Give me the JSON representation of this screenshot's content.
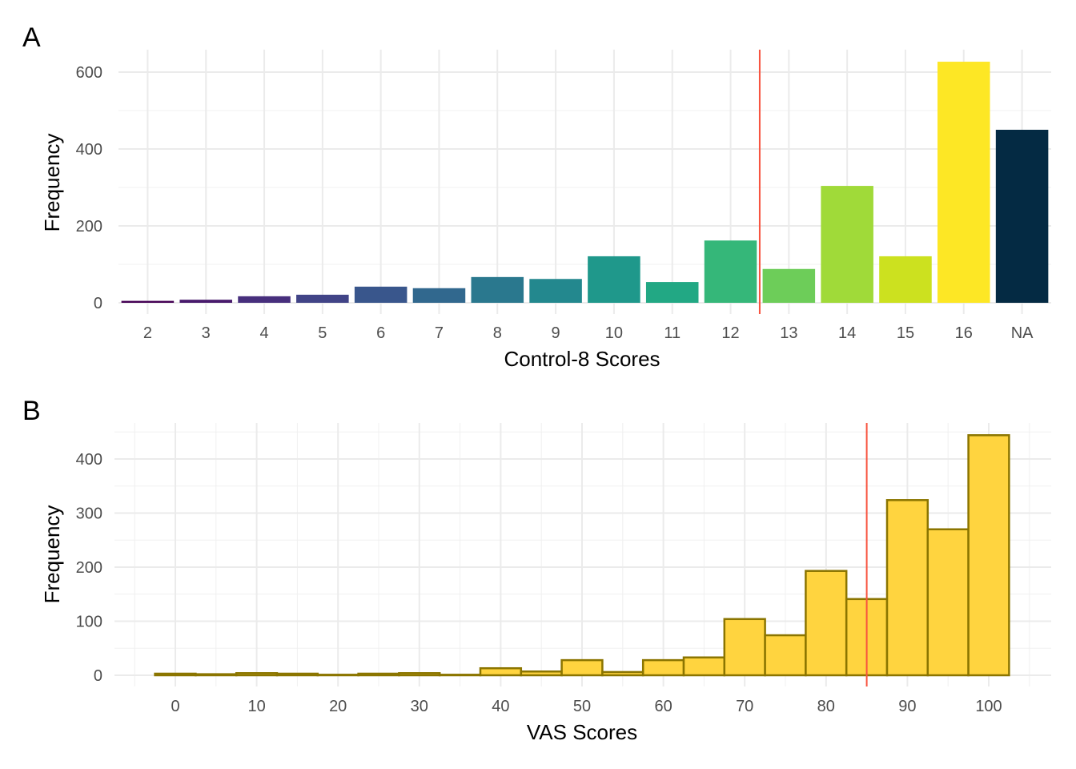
{
  "chart_data": [
    {
      "type": "bar",
      "tag": "A",
      "title": "",
      "xlabel": "Control-8 Scores",
      "ylabel": "Frequency",
      "categories": [
        "2",
        "3",
        "4",
        "5",
        "6",
        "7",
        "8",
        "9",
        "10",
        "11",
        "12",
        "13",
        "14",
        "15",
        "16",
        "NA"
      ],
      "values": [
        5,
        8,
        17,
        21,
        42,
        38,
        67,
        62,
        121,
        54,
        162,
        88,
        304,
        121,
        627,
        450
      ],
      "colors": [
        "#440154",
        "#481A6C",
        "#472F7D",
        "#414487",
        "#39568C",
        "#31688E",
        "#2A788E",
        "#23888E",
        "#1F988B",
        "#22A884",
        "#35B779",
        "#6DCD59",
        "#A0DA39",
        "#CCE11F",
        "#FDE725",
        "#042A43"
      ],
      "ylim": [
        0,
        658
      ],
      "yticks": [
        0,
        200,
        400,
        600
      ],
      "cutoff_line": {
        "x": 12.5,
        "color": "#F8533F"
      },
      "grid": true
    },
    {
      "type": "histogram",
      "tag": "B",
      "title": "",
      "xlabel": "VAS Scores",
      "ylabel": "Frequency",
      "bin_width": 5,
      "bin_centers": [
        0,
        5,
        10,
        15,
        20,
        25,
        30,
        35,
        40,
        45,
        50,
        55,
        60,
        65,
        70,
        75,
        80,
        85,
        90,
        95,
        100
      ],
      "values": [
        3,
        2,
        4,
        3,
        1,
        3,
        4,
        1,
        13,
        7,
        28,
        6,
        28,
        33,
        104,
        74,
        193,
        141,
        324,
        270,
        444
      ],
      "fill": "#FFD43F",
      "stroke": "#8B7500",
      "xlim": [
        -7.5,
        107.5
      ],
      "xticks": [
        0,
        10,
        20,
        30,
        40,
        50,
        60,
        70,
        80,
        90,
        100
      ],
      "ylim": [
        0,
        467
      ],
      "yticks": [
        0,
        100,
        200,
        300,
        400
      ],
      "cutoff_line": {
        "x": 85,
        "color": "#F8533F"
      },
      "grid": true
    }
  ]
}
